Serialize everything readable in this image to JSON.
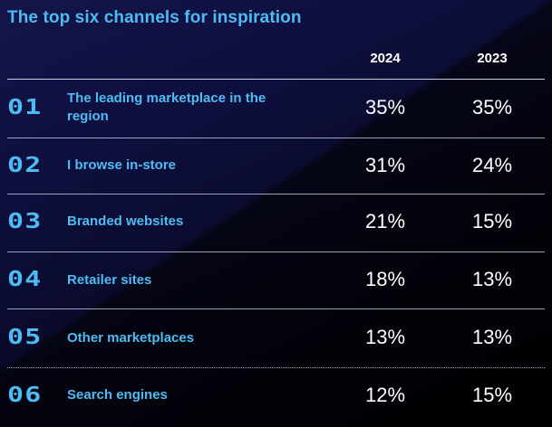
{
  "chart_data": {
    "type": "table",
    "title": "The top six channels for inspiration",
    "columns": [
      "2024",
      "2023"
    ],
    "rows": [
      {
        "rank": "01",
        "label": "The leading marketplace in the region",
        "values": [
          "35%",
          "35%"
        ]
      },
      {
        "rank": "02",
        "label": "I browse in-store",
        "values": [
          "31%",
          "24%"
        ]
      },
      {
        "rank": "03",
        "label": "Branded websites",
        "values": [
          "21%",
          "15%"
        ]
      },
      {
        "rank": "04",
        "label": "Retailer sites",
        "values": [
          "18%",
          "13%"
        ]
      },
      {
        "rank": "05",
        "label": "Other marketplaces",
        "values": [
          "13%",
          "13%"
        ]
      },
      {
        "rank": "06",
        "label": "Search engines",
        "values": [
          "12%",
          "15%"
        ]
      }
    ]
  },
  "colors": {
    "accent": "#4dbcf2",
    "value_text": "#ffffff",
    "background_top": "#14154a",
    "background_bottom": "#020206"
  }
}
